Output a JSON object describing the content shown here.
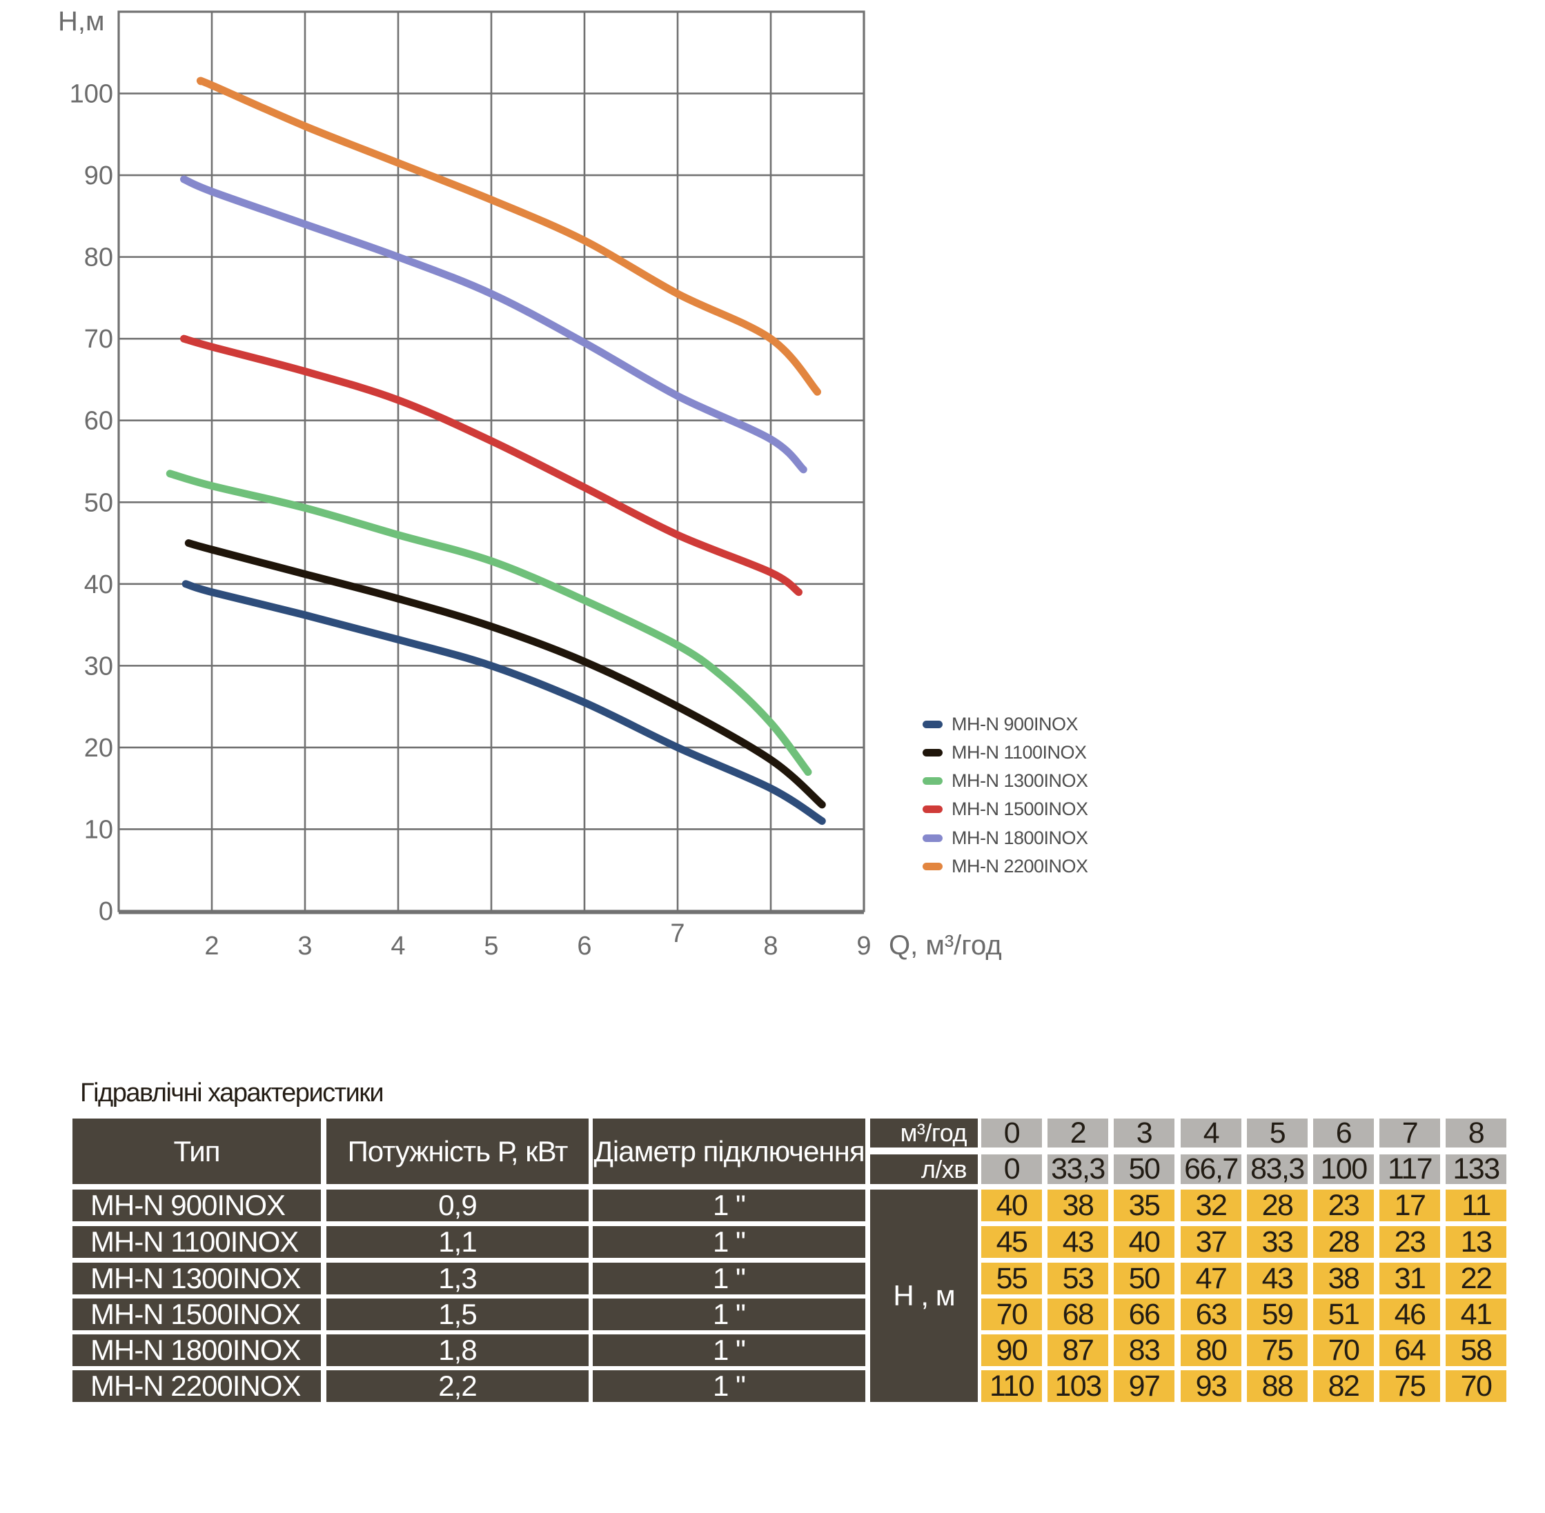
{
  "chart": {
    "y_axis_title": "Н,м",
    "x_axis_title": "Q, м³/год",
    "y_ticks": [
      "0",
      "10",
      "20",
      "30",
      "40",
      "50",
      "60",
      "70",
      "80",
      "90",
      "100"
    ],
    "x_ticks": [
      "2",
      "3",
      "4",
      "5",
      "6",
      "7",
      "8",
      "9"
    ],
    "grid_color": "#717171",
    "tick_text_color": "#6b6b6b"
  },
  "chart_data": {
    "type": "line",
    "title": "",
    "xlabel": "Q, м³/год",
    "ylabel": "Н,м",
    "xlim": [
      1,
      9
    ],
    "ylim": [
      0,
      110
    ],
    "grid": true,
    "x_gridlines": [
      2,
      3,
      4,
      5,
      6,
      7,
      8
    ],
    "y_gridline_step": 10,
    "legend_position": "right-middle",
    "series": [
      {
        "name": "MH-N 900INOX",
        "color": "#2e4d7b",
        "points": [
          [
            1.72,
            40
          ],
          [
            2,
            39
          ],
          [
            3,
            36.2
          ],
          [
            4,
            33.2
          ],
          [
            5,
            30
          ],
          [
            6,
            25.5
          ],
          [
            7,
            20
          ],
          [
            8,
            15
          ],
          [
            8.55,
            11
          ]
        ]
      },
      {
        "name": "MH-N 1100INOX",
        "color": "#1f150a",
        "points": [
          [
            1.75,
            45
          ],
          [
            2,
            44.2
          ],
          [
            3,
            41.2
          ],
          [
            4,
            38.2
          ],
          [
            5,
            34.8
          ],
          [
            6,
            30.5
          ],
          [
            7,
            25
          ],
          [
            8,
            18.5
          ],
          [
            8.55,
            13
          ]
        ]
      },
      {
        "name": "MH-N 1300INOX",
        "color": "#6fc07a",
        "points": [
          [
            1.55,
            53.5
          ],
          [
            2,
            52
          ],
          [
            3,
            49.3
          ],
          [
            4,
            46
          ],
          [
            5,
            42.8
          ],
          [
            6,
            38
          ],
          [
            7,
            32.5
          ],
          [
            7.5,
            28.5
          ],
          [
            8,
            23
          ],
          [
            8.4,
            17
          ]
        ]
      },
      {
        "name": "MH-N 1500INOX",
        "color": "#cf3b38",
        "points": [
          [
            1.7,
            70
          ],
          [
            2,
            69
          ],
          [
            3,
            66
          ],
          [
            4,
            62.5
          ],
          [
            5,
            57.5
          ],
          [
            6,
            51.8
          ],
          [
            7,
            46
          ],
          [
            8,
            41.4
          ],
          [
            8.3,
            39
          ]
        ]
      },
      {
        "name": "MH-N 1800INOX",
        "color": "#8588cc",
        "points": [
          [
            1.7,
            89.5
          ],
          [
            2,
            88
          ],
          [
            3,
            84
          ],
          [
            4,
            80
          ],
          [
            5,
            75.5
          ],
          [
            6,
            69.5
          ],
          [
            7,
            63
          ],
          [
            8,
            57.7
          ],
          [
            8.35,
            54
          ]
        ]
      },
      {
        "name": "MH-N 2200INOX",
        "color": "#e2853f",
        "points": [
          [
            1.88,
            101.5
          ],
          [
            2,
            101
          ],
          [
            3,
            96
          ],
          [
            4,
            91.5
          ],
          [
            5,
            87
          ],
          [
            6,
            82
          ],
          [
            7,
            75.5
          ],
          [
            8,
            70
          ],
          [
            8.5,
            63.5
          ]
        ]
      }
    ]
  },
  "table": {
    "title": "Гідравлічні характеристики",
    "headers": {
      "type": "Тип",
      "power": "Потужність  Р, кВт",
      "diameter": "Діаметр підключення",
      "flow_hour": "м³/год",
      "flow_min": "л/хв",
      "head": "Н , м"
    },
    "flow_hour_values": [
      "0",
      "2",
      "3",
      "4",
      "5",
      "6",
      "7",
      "8"
    ],
    "flow_min_values": [
      "0",
      "33,3",
      "50",
      "66,7",
      "83,3",
      "100",
      "117",
      "133"
    ],
    "rows": [
      {
        "type": "MH-N 900INOX",
        "power": "0,9",
        "diameter": "1 \"",
        "head_values": [
          "40",
          "38",
          "35",
          "32",
          "28",
          "23",
          "17",
          "11"
        ]
      },
      {
        "type": "MH-N 1100INOX",
        "power": "1,1",
        "diameter": "1 \"",
        "head_values": [
          "45",
          "43",
          "40",
          "37",
          "33",
          "28",
          "23",
          "13"
        ]
      },
      {
        "type": "MH-N 1300INOX",
        "power": "1,3",
        "diameter": "1 \"",
        "head_values": [
          "55",
          "53",
          "50",
          "47",
          "43",
          "38",
          "31",
          "22"
        ]
      },
      {
        "type": "MH-N 1500INOX",
        "power": "1,5",
        "diameter": "1 \"",
        "head_values": [
          "70",
          "68",
          "66",
          "63",
          "59",
          "51",
          "46",
          "41"
        ]
      },
      {
        "type": "MH-N 1800INOX",
        "power": "1,8",
        "diameter": "1 \"",
        "head_values": [
          "90",
          "87",
          "83",
          "80",
          "75",
          "70",
          "64",
          "58"
        ]
      },
      {
        "type": "MH-N 2200INOX",
        "power": "2,2",
        "diameter": "1 \"",
        "head_values": [
          "110",
          "103",
          "97",
          "93",
          "88",
          "82",
          "75",
          "70"
        ]
      }
    ],
    "colors": {
      "dark_cell": "#4a443b",
      "gray_cell": "#b5b3b0",
      "yellow_cell": "#f2bd3c"
    }
  }
}
